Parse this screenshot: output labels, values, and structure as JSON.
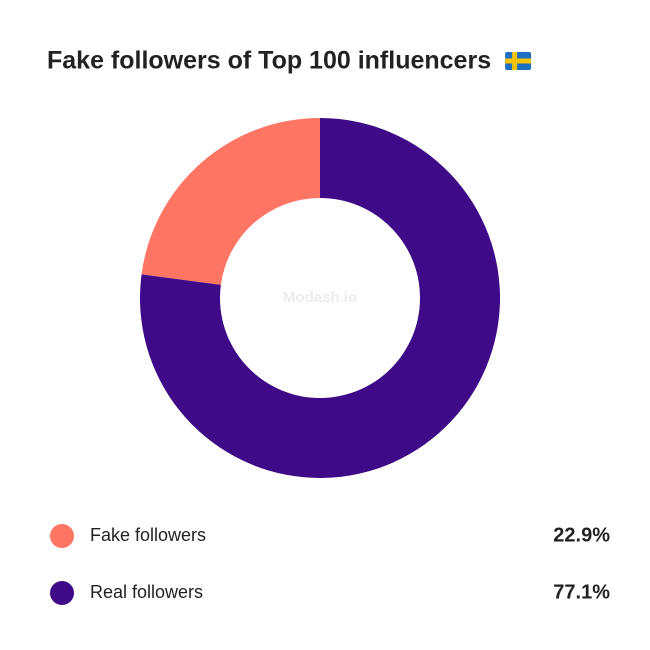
{
  "chart_data": {
    "type": "pie",
    "title": "Fake followers of Top 100 influencers",
    "watermark": "Modash.io",
    "categories": [
      "Fake followers",
      "Real followers"
    ],
    "values": [
      22.9,
      77.1
    ],
    "value_labels": [
      "22.9%",
      "77.1%"
    ],
    "colors": [
      "#ff7563",
      "#3f0a88"
    ]
  }
}
